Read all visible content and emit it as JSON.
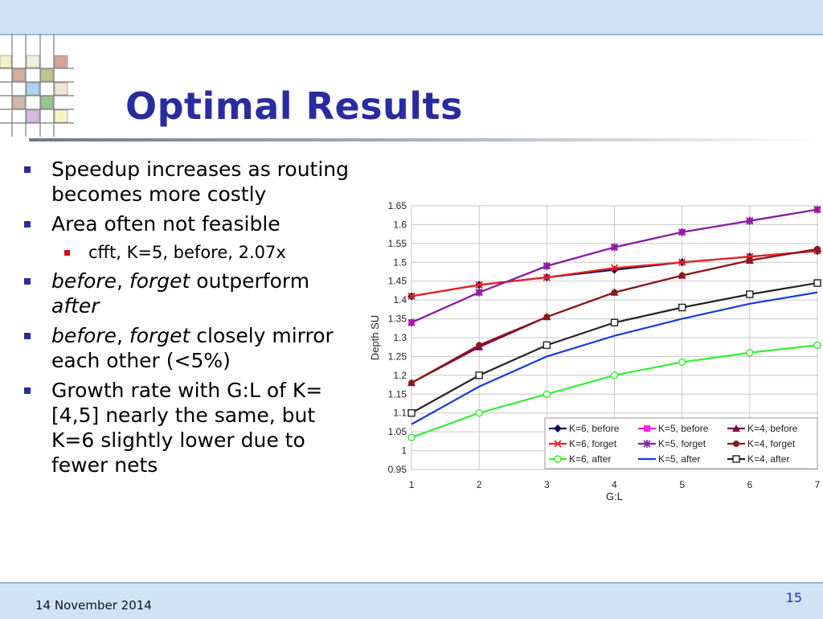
{
  "slide": {
    "title": "Optimal Results",
    "date": "14 November 2014",
    "page_number": "15"
  },
  "bullets": {
    "b1": "Speedup increases as routing becomes more costly",
    "b2": "Area often not feasible",
    "b2_sub": "cfft, K=5, before, 2.07x",
    "b3_i1": "before",
    "b3_t1": ", ",
    "b3_i2": "forget",
    "b3_t2": " outperform ",
    "b3_i3": "after",
    "b4_i1": "before",
    "b4_t1": ", ",
    "b4_i2": "forget",
    "b4_t2": " closely mirror each other (<5%)",
    "b5": "Growth rate with G:L of K=[4,5] nearly the same, but K=6 slightly lower due to fewer nets"
  },
  "chart_data": {
    "type": "line",
    "xlabel": "G:L",
    "ylabel": "Depth SU",
    "x": [
      1,
      2,
      3,
      4,
      5,
      6,
      7
    ],
    "xlim": [
      1,
      7
    ],
    "ylim": [
      0.95,
      1.65
    ],
    "yticks": [
      "0.95",
      "1",
      "1.05",
      "1.1",
      "1.15",
      "1.2",
      "1.25",
      "1.3",
      "1.35",
      "1.4",
      "1.45",
      "1.5",
      "1.55",
      "1.6",
      "1.65"
    ],
    "grid": true,
    "legend_position": "bottom-right",
    "series": [
      {
        "name": "K=6, before",
        "color": "#101060",
        "marker": "diamond",
        "values": [
          1.41,
          1.44,
          1.46,
          1.48,
          1.5,
          1.515,
          1.53
        ]
      },
      {
        "name": "K=5, before",
        "color": "#ff22dd",
        "marker": "square",
        "values": [
          1.34,
          1.42,
          1.49,
          1.54,
          1.58,
          1.61,
          1.64
        ]
      },
      {
        "name": "K=4, before",
        "color": "#800050",
        "marker": "triangle",
        "values": [
          1.18,
          1.275,
          1.355,
          1.42,
          1.465,
          1.505,
          1.535
        ]
      },
      {
        "name": "K=6, forget",
        "color": "#ee2020",
        "marker": "x",
        "values": [
          1.41,
          1.44,
          1.46,
          1.485,
          1.5,
          1.515,
          1.53
        ]
      },
      {
        "name": "K=5, forget",
        "color": "#8020a0",
        "marker": "star",
        "values": [
          1.34,
          1.42,
          1.49,
          1.54,
          1.58,
          1.61,
          1.64
        ]
      },
      {
        "name": "K=4, forget",
        "color": "#8a1a1a",
        "marker": "circle-filled",
        "values": [
          1.18,
          1.28,
          1.355,
          1.42,
          1.465,
          1.505,
          1.535
        ]
      },
      {
        "name": "K=6, after",
        "color": "#33ee33",
        "marker": "circle-open",
        "values": [
          1.035,
          1.1,
          1.15,
          1.2,
          1.235,
          1.26,
          1.28
        ]
      },
      {
        "name": "K=5, after",
        "color": "#1a3adf",
        "marker": "none",
        "values": [
          1.07,
          1.17,
          1.25,
          1.305,
          1.35,
          1.39,
          1.42
        ]
      },
      {
        "name": "K=4, after",
        "color": "#222222",
        "marker": "square-open",
        "values": [
          1.1,
          1.2,
          1.28,
          1.34,
          1.38,
          1.415,
          1.445
        ]
      }
    ]
  }
}
